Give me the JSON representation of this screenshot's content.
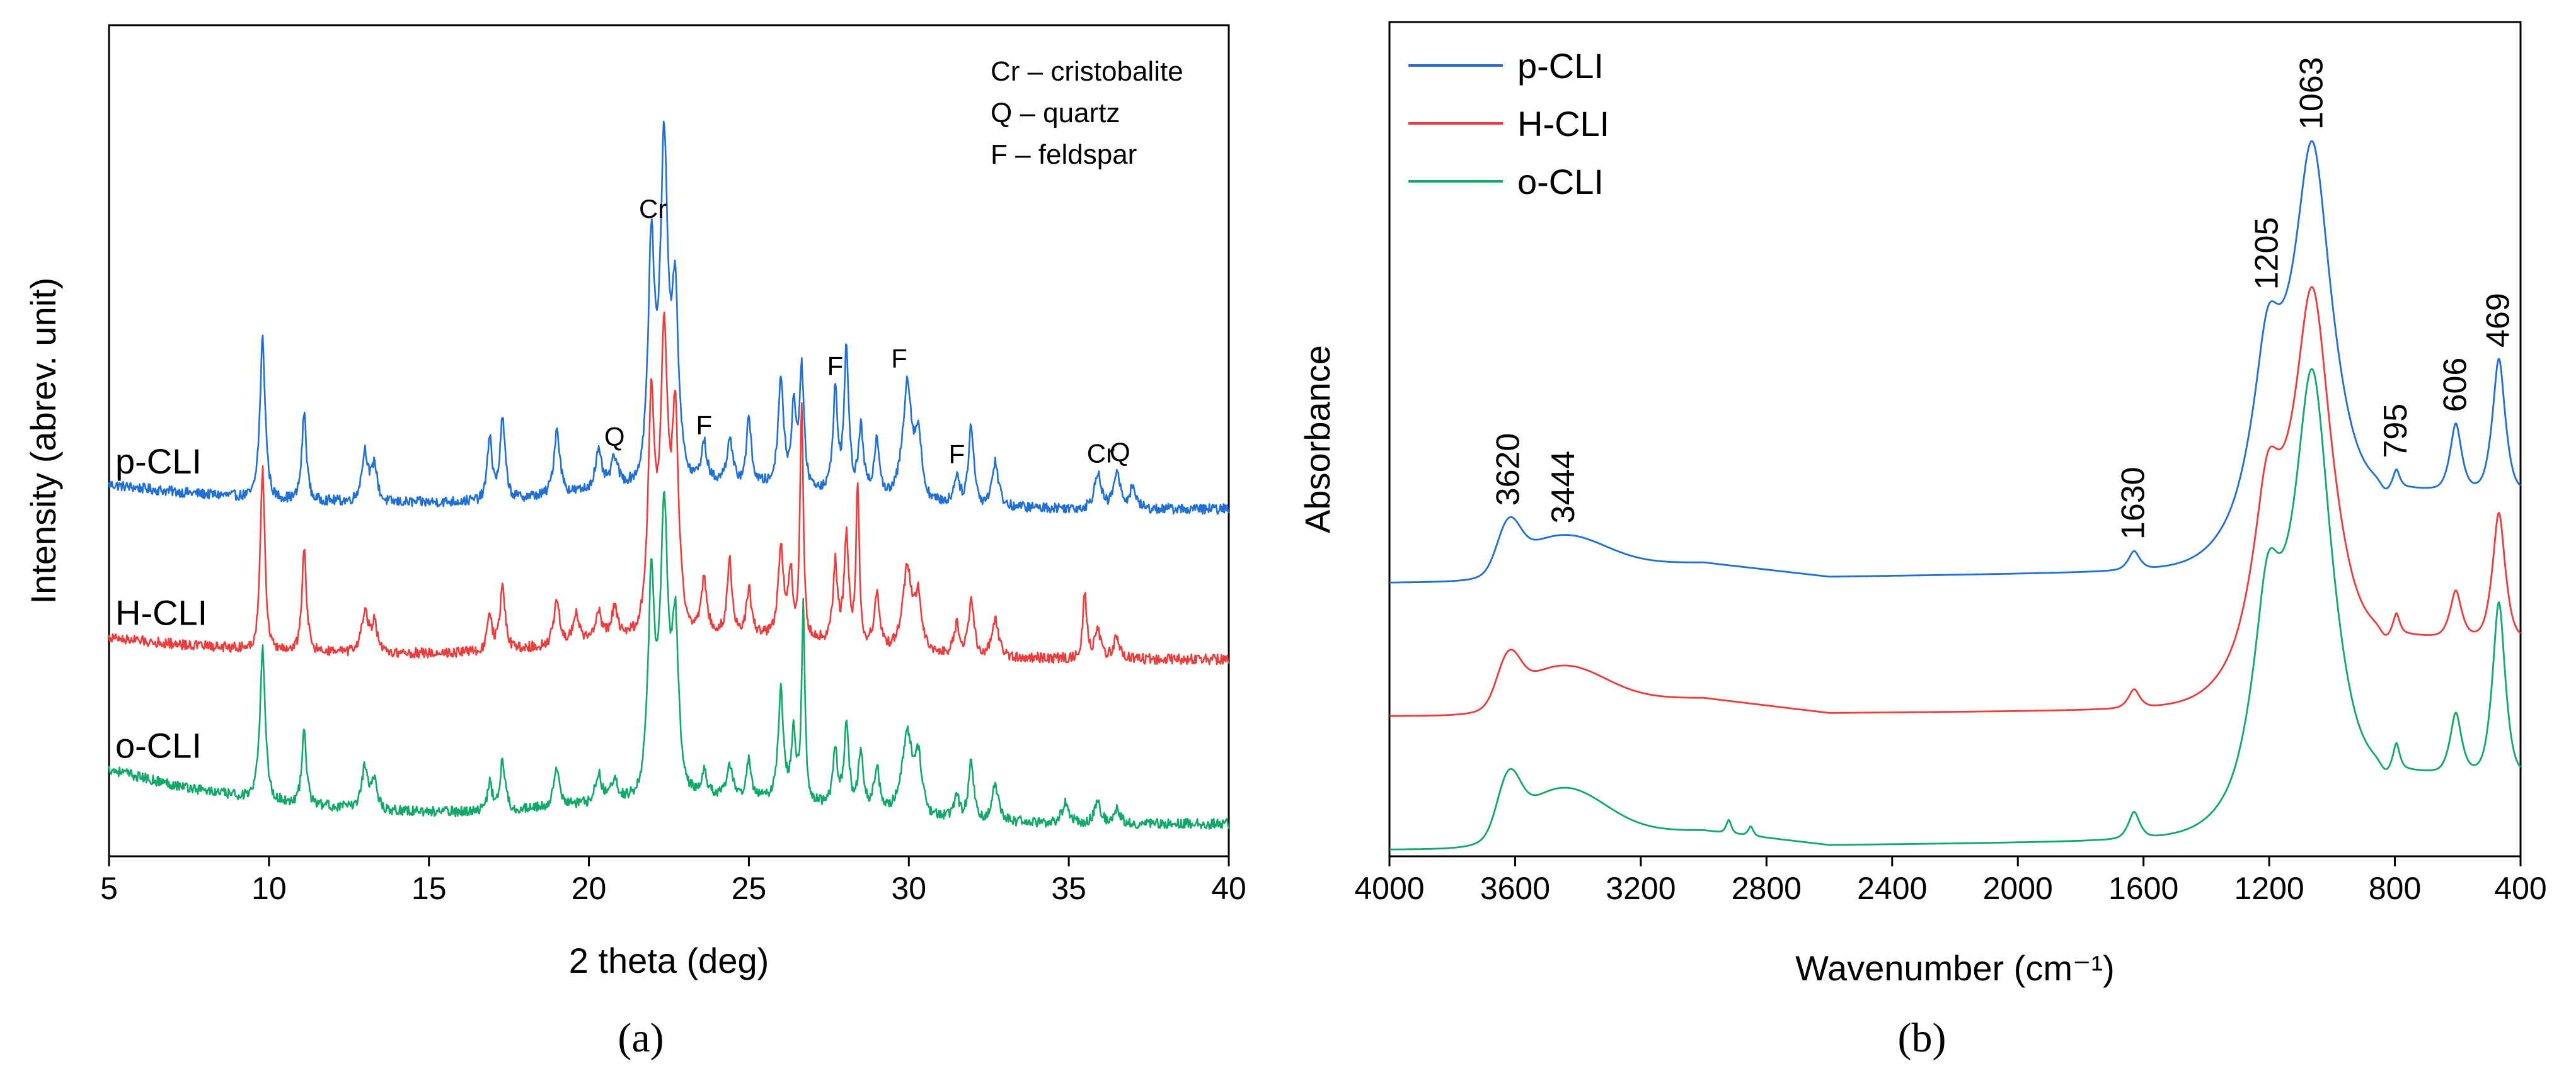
{
  "figure": {
    "panel_a_label": "(a)",
    "panel_b_label": "(b)"
  },
  "colors": {
    "blue": "#1f6fd6",
    "red": "#ee3b3b",
    "green": "#10a96a",
    "axis": "#000000"
  },
  "chart_data": [
    {
      "type": "line",
      "panel": "a",
      "title": "",
      "xlabel": "2 theta (deg)",
      "ylabel": "Intensity (abrev. unit)",
      "xlim": [
        5,
        40
      ],
      "x_ticks": [
        5,
        10,
        15,
        20,
        25,
        30,
        35,
        40
      ],
      "y_ticks_shown": false,
      "grid": false,
      "legend_box": [
        "Cr – cristobalite",
        "Q – quartz",
        "F – feldspar"
      ],
      "legend_placement": "top-right",
      "series": [
        {
          "name": "p-CLI",
          "color_key": "blue",
          "offset": 2.0,
          "baseline": 0.45,
          "end_level": 0.28,
          "peaks": [
            {
              "x": 9.8,
              "h": 1.1,
              "w": 0.08
            },
            {
              "x": 11.1,
              "h": 0.6,
              "w": 0.07
            },
            {
              "x": 13.0,
              "h": 0.35,
              "w": 0.1
            },
            {
              "x": 13.3,
              "h": 0.25,
              "w": 0.08
            },
            {
              "x": 16.9,
              "h": 0.45,
              "w": 0.07
            },
            {
              "x": 17.3,
              "h": 0.55,
              "w": 0.08
            },
            {
              "x": 19.0,
              "h": 0.45,
              "w": 0.09
            },
            {
              "x": 20.3,
              "h": 0.25,
              "w": 0.1
            },
            {
              "x": 20.8,
              "h": 0.2,
              "w": 0.1
            },
            {
              "x": 21.95,
              "h": 1.6,
              "w": 0.1
            },
            {
              "x": 22.35,
              "h": 2.3,
              "w": 0.12
            },
            {
              "x": 22.7,
              "h": 1.2,
              "w": 0.1
            },
            {
              "x": 23.6,
              "h": 0.25,
              "w": 0.08
            },
            {
              "x": 24.4,
              "h": 0.3,
              "w": 0.08
            },
            {
              "x": 25.0,
              "h": 0.45,
              "w": 0.07
            },
            {
              "x": 26.0,
              "h": 0.75,
              "w": 0.08
            },
            {
              "x": 26.4,
              "h": 0.55,
              "w": 0.07
            },
            {
              "x": 26.65,
              "h": 0.8,
              "w": 0.07
            },
            {
              "x": 27.7,
              "h": 0.7,
              "w": 0.07
            },
            {
              "x": 28.05,
              "h": 1.0,
              "w": 0.07
            },
            {
              "x": 28.5,
              "h": 0.45,
              "w": 0.08
            },
            {
              "x": 29.0,
              "h": 0.4,
              "w": 0.08
            },
            {
              "x": 29.95,
              "h": 0.8,
              "w": 0.14
            },
            {
              "x": 30.3,
              "h": 0.4,
              "w": 0.1
            },
            {
              "x": 31.5,
              "h": 0.2,
              "w": 0.08
            },
            {
              "x": 31.95,
              "h": 0.55,
              "w": 0.08
            },
            {
              "x": 32.7,
              "h": 0.3,
              "w": 0.1
            },
            {
              "x": 35.9,
              "h": 0.25,
              "w": 0.1
            },
            {
              "x": 36.5,
              "h": 0.25,
              "w": 0.1
            },
            {
              "x": 37.0,
              "h": 0.15,
              "w": 0.1
            }
          ]
        },
        {
          "name": "H-CLI",
          "color_key": "red",
          "offset": 1.0,
          "baseline": 0.4,
          "end_level": 0.25,
          "peaks": [
            {
              "x": 9.8,
              "h": 1.25,
              "w": 0.07
            },
            {
              "x": 11.1,
              "h": 0.7,
              "w": 0.07
            },
            {
              "x": 13.0,
              "h": 0.3,
              "w": 0.1
            },
            {
              "x": 13.3,
              "h": 0.2,
              "w": 0.08
            },
            {
              "x": 16.9,
              "h": 0.25,
              "w": 0.07
            },
            {
              "x": 17.3,
              "h": 0.45,
              "w": 0.08
            },
            {
              "x": 19.0,
              "h": 0.3,
              "w": 0.09
            },
            {
              "x": 19.6,
              "h": 0.2,
              "w": 0.09
            },
            {
              "x": 20.3,
              "h": 0.2,
              "w": 0.09
            },
            {
              "x": 20.8,
              "h": 0.2,
              "w": 0.09
            },
            {
              "x": 21.95,
              "h": 1.55,
              "w": 0.1
            },
            {
              "x": 22.35,
              "h": 2.0,
              "w": 0.12
            },
            {
              "x": 22.7,
              "h": 1.4,
              "w": 0.1
            },
            {
              "x": 23.6,
              "h": 0.35,
              "w": 0.08
            },
            {
              "x": 24.4,
              "h": 0.5,
              "w": 0.07
            },
            {
              "x": 25.0,
              "h": 0.3,
              "w": 0.07
            },
            {
              "x": 26.0,
              "h": 0.6,
              "w": 0.08
            },
            {
              "x": 26.3,
              "h": 0.45,
              "w": 0.07
            },
            {
              "x": 26.65,
              "h": 1.6,
              "w": 0.05
            },
            {
              "x": 27.7,
              "h": 0.55,
              "w": 0.07
            },
            {
              "x": 28.05,
              "h": 0.75,
              "w": 0.07
            },
            {
              "x": 28.4,
              "h": 1.1,
              "w": 0.05
            },
            {
              "x": 29.0,
              "h": 0.35,
              "w": 0.08
            },
            {
              "x": 29.95,
              "h": 0.55,
              "w": 0.14
            },
            {
              "x": 30.3,
              "h": 0.35,
              "w": 0.1
            },
            {
              "x": 31.5,
              "h": 0.2,
              "w": 0.08
            },
            {
              "x": 31.95,
              "h": 0.4,
              "w": 0.08
            },
            {
              "x": 32.7,
              "h": 0.25,
              "w": 0.1
            },
            {
              "x": 35.5,
              "h": 0.45,
              "w": 0.06
            },
            {
              "x": 35.9,
              "h": 0.2,
              "w": 0.1
            },
            {
              "x": 36.5,
              "h": 0.15,
              "w": 0.1
            }
          ]
        },
        {
          "name": "o-CLI",
          "color_key": "green",
          "offset": 0.0,
          "baseline": 0.5,
          "end_level": 0.12,
          "peaks": [
            {
              "x": 9.8,
              "h": 1.05,
              "w": 0.08
            },
            {
              "x": 11.1,
              "h": 0.5,
              "w": 0.07
            },
            {
              "x": 13.0,
              "h": 0.3,
              "w": 0.1
            },
            {
              "x": 13.3,
              "h": 0.2,
              "w": 0.08
            },
            {
              "x": 16.9,
              "h": 0.2,
              "w": 0.07
            },
            {
              "x": 17.3,
              "h": 0.35,
              "w": 0.08
            },
            {
              "x": 19.0,
              "h": 0.25,
              "w": 0.09
            },
            {
              "x": 20.3,
              "h": 0.2,
              "w": 0.09
            },
            {
              "x": 20.8,
              "h": 0.15,
              "w": 0.09
            },
            {
              "x": 21.95,
              "h": 1.45,
              "w": 0.1
            },
            {
              "x": 22.35,
              "h": 1.95,
              "w": 0.12
            },
            {
              "x": 22.7,
              "h": 1.1,
              "w": 0.1
            },
            {
              "x": 23.6,
              "h": 0.15,
              "w": 0.08
            },
            {
              "x": 24.4,
              "h": 0.2,
              "w": 0.08
            },
            {
              "x": 25.0,
              "h": 0.25,
              "w": 0.07
            },
            {
              "x": 26.0,
              "h": 0.75,
              "w": 0.08
            },
            {
              "x": 26.4,
              "h": 0.5,
              "w": 0.07
            },
            {
              "x": 26.7,
              "h": 1.35,
              "w": 0.05
            },
            {
              "x": 27.7,
              "h": 0.4,
              "w": 0.07
            },
            {
              "x": 28.05,
              "h": 0.6,
              "w": 0.07
            },
            {
              "x": 28.5,
              "h": 0.4,
              "w": 0.08
            },
            {
              "x": 29.0,
              "h": 0.3,
              "w": 0.08
            },
            {
              "x": 29.95,
              "h": 0.55,
              "w": 0.16
            },
            {
              "x": 30.3,
              "h": 0.35,
              "w": 0.1
            },
            {
              "x": 31.5,
              "h": 0.15,
              "w": 0.08
            },
            {
              "x": 31.95,
              "h": 0.4,
              "w": 0.08
            },
            {
              "x": 32.7,
              "h": 0.25,
              "w": 0.1
            },
            {
              "x": 34.9,
              "h": 0.15,
              "w": 0.1
            },
            {
              "x": 35.9,
              "h": 0.15,
              "w": 0.1
            },
            {
              "x": 36.5,
              "h": 0.1,
              "w": 0.1
            }
          ]
        }
      ],
      "series_labels": [
        {
          "series": "p-CLI",
          "text": "p-CLI"
        },
        {
          "series": "H-CLI",
          "text": "H-CLI"
        },
        {
          "series": "o-CLI",
          "text": "o-CLI"
        }
      ],
      "annotations": [
        {
          "text": "Cr",
          "x": 22.0,
          "series": "p-CLI"
        },
        {
          "text": "Q",
          "x": 20.8,
          "series": "p-CLI"
        },
        {
          "text": "F",
          "x": 23.6,
          "series": "p-CLI"
        },
        {
          "text": "F",
          "x": 27.7,
          "series": "p-CLI"
        },
        {
          "text": "F",
          "x": 29.7,
          "series": "p-CLI"
        },
        {
          "text": "F",
          "x": 31.5,
          "series": "p-CLI"
        },
        {
          "text": "Cr",
          "x": 36.0,
          "series": "p-CLI"
        },
        {
          "text": "Q",
          "x": 36.6,
          "series": "p-CLI"
        }
      ]
    },
    {
      "type": "line",
      "panel": "b",
      "title": "",
      "xlabel": "Wavenumber (cm⁻¹)",
      "ylabel": "Absorbance",
      "xlim": [
        4000,
        400
      ],
      "x_reversed": true,
      "x_ticks": [
        4000,
        3600,
        3200,
        2800,
        2400,
        2000,
        1600,
        1200,
        800,
        400
      ],
      "y_ticks_shown": false,
      "grid": false,
      "legend_placement": "top-left",
      "legend": [
        "p-CLI",
        "H-CLI",
        "o-CLI"
      ],
      "series": [
        {
          "name": "p-CLI",
          "color_key": "blue",
          "offset": 2.0,
          "baseline_start": 0.0,
          "baseline_mid": 0.2,
          "baseline_end": 0.55,
          "peaks": [
            {
              "x": 3620,
              "h": 0.28,
              "w": 35
            },
            {
              "x": 3444,
              "h": 0.22,
              "w": 130
            },
            {
              "x": 1630,
              "h": 0.14,
              "w": 18
            },
            {
              "x": 1205,
              "h": 1.1,
              "w": 45
            },
            {
              "x": 1063,
              "h": 2.6,
              "w": 60
            },
            {
              "x": 795,
              "h": 0.12,
              "w": 10
            },
            {
              "x": 606,
              "h": 0.5,
              "w": 18
            },
            {
              "x": 469,
              "h": 1.0,
              "w": 20
            }
          ]
        },
        {
          "name": "H-CLI",
          "color_key": "red",
          "offset": 1.0,
          "baseline_start": 0.0,
          "baseline_mid": 0.1,
          "baseline_end": 0.5,
          "peaks": [
            {
              "x": 3620,
              "h": 0.28,
              "w": 35
            },
            {
              "x": 3444,
              "h": 0.25,
              "w": 130
            },
            {
              "x": 1630,
              "h": 0.14,
              "w": 18
            },
            {
              "x": 1205,
              "h": 1.1,
              "w": 45
            },
            {
              "x": 1063,
              "h": 2.6,
              "w": 60
            },
            {
              "x": 795,
              "h": 0.14,
              "w": 10
            },
            {
              "x": 606,
              "h": 0.35,
              "w": 18
            },
            {
              "x": 469,
              "h": 0.95,
              "w": 20
            }
          ]
        },
        {
          "name": "o-CLI",
          "color_key": "green",
          "offset": 0.0,
          "baseline_start": 0.0,
          "baseline_mid": 0.15,
          "baseline_end": 0.45,
          "peaks": [
            {
              "x": 3620,
              "h": 0.35,
              "w": 35
            },
            {
              "x": 3444,
              "h": 0.33,
              "w": 130
            },
            {
              "x": 2920,
              "h": 0.1,
              "w": 8
            },
            {
              "x": 2850,
              "h": 0.07,
              "w": 8
            },
            {
              "x": 1630,
              "h": 0.2,
              "w": 18
            },
            {
              "x": 1205,
              "h": 1.3,
              "w": 45
            },
            {
              "x": 1063,
              "h": 3.0,
              "w": 60
            },
            {
              "x": 795,
              "h": 0.18,
              "w": 10
            },
            {
              "x": 606,
              "h": 0.45,
              "w": 18
            },
            {
              "x": 469,
              "h": 1.3,
              "w": 20
            }
          ]
        }
      ],
      "peak_labels": [
        {
          "text": "3620",
          "x": 3620,
          "series": "p-CLI"
        },
        {
          "text": "3444",
          "x": 3444,
          "series": "p-CLI"
        },
        {
          "text": "1630",
          "x": 1630,
          "series": "p-CLI"
        },
        {
          "text": "1205",
          "x": 1205,
          "series": "p-CLI"
        },
        {
          "text": "1063",
          "x": 1063,
          "series": "p-CLI"
        },
        {
          "text": "795",
          "x": 795,
          "series": "p-CLI"
        },
        {
          "text": "606",
          "x": 606,
          "series": "p-CLI"
        },
        {
          "text": "469",
          "x": 469,
          "series": "p-CLI"
        }
      ]
    }
  ]
}
